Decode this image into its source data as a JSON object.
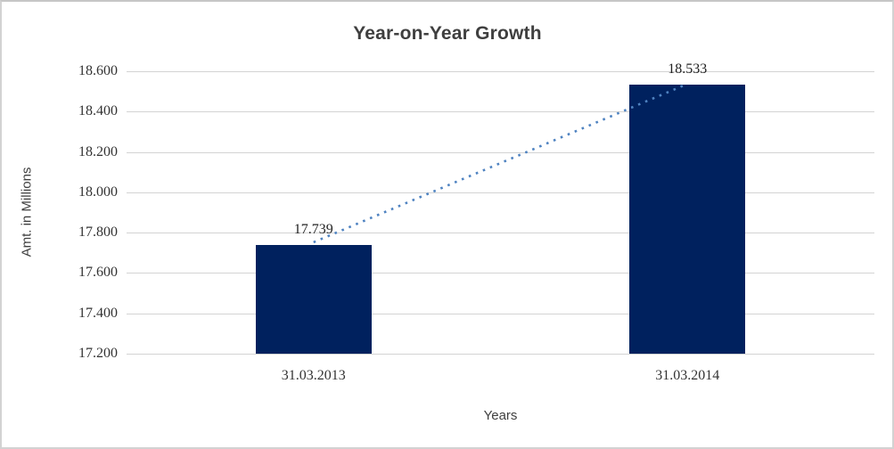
{
  "chart_data": {
    "type": "bar",
    "title": "Year-on-Year Growth",
    "xlabel": "Years",
    "ylabel": "Amt. in Millions",
    "categories": [
      "31.03.2013",
      "31.03.2014"
    ],
    "values": [
      17.739,
      18.533
    ],
    "data_labels": [
      "17.739",
      "18.533"
    ],
    "ytick_labels": [
      "17.200",
      "17.400",
      "17.600",
      "17.800",
      "18.000",
      "18.200",
      "18.400",
      "18.600"
    ],
    "ytick_values": [
      17.2,
      17.4,
      17.6,
      17.8,
      18.0,
      18.2,
      18.4,
      18.6
    ],
    "ylim": [
      17.2,
      18.7
    ],
    "grid": true,
    "legend": "none",
    "trendline": {
      "style": "dotted",
      "connects": [
        "bar-1-top",
        "bar-2-top"
      ],
      "from_value": 17.739,
      "to_value": 18.533
    },
    "colors": {
      "bar": "#00215e",
      "trend": "#4f83c1",
      "gridline": "#d3d3d3",
      "title_text": "#3f3f3f",
      "tick_text": "#333333",
      "frame_border": "#d2d2d2"
    }
  }
}
